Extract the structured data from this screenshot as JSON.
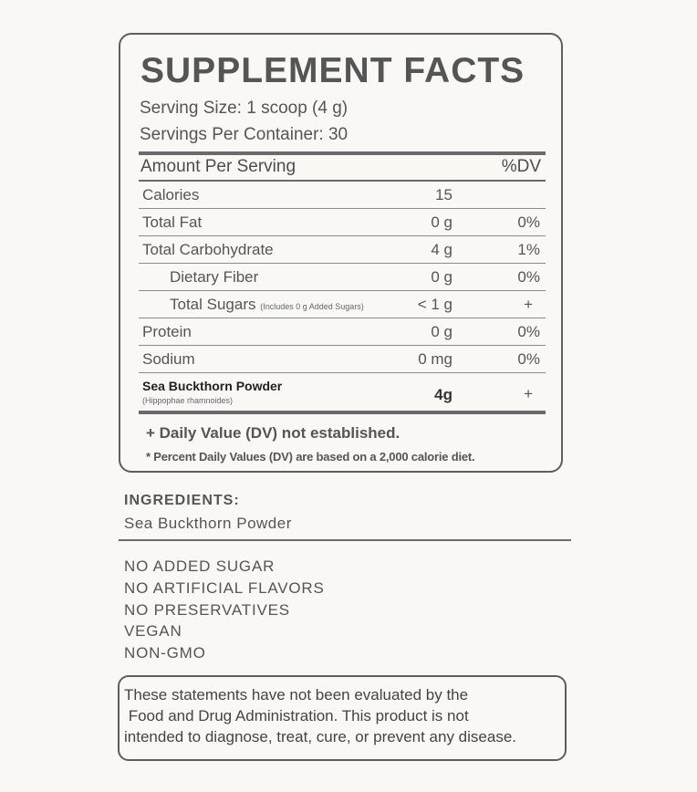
{
  "panel": {
    "title": "SUPPLEMENT FACTS",
    "serving_size": "Serving Size: 1 scoop (4 g)",
    "servings_per_container": "Servings Per Container: 30",
    "header_amount": "Amount Per Serving",
    "header_dv": "%DV",
    "rows": [
      {
        "name": "Calories",
        "amount": "15",
        "dv": ""
      },
      {
        "name": "Total Fat",
        "amount": "0 g",
        "dv": "0%"
      },
      {
        "name": "Total Carbohydrate",
        "amount": "4 g",
        "dv": "1%"
      },
      {
        "name": "Dietary Fiber",
        "amount": "0 g",
        "dv": "0%"
      },
      {
        "name": "Total Sugars",
        "note": "(Includes 0 g Added Sugars)",
        "amount": "< 1 g",
        "dv": "+"
      },
      {
        "name": "Protein",
        "amount": "0 g",
        "dv": "0%"
      },
      {
        "name": "Sodium",
        "amount": "0 mg",
        "dv": "0%"
      }
    ],
    "featured": {
      "name": "Sea Buckthorn Powder",
      "scientific": "(Hippophae rhamnoides)",
      "amount": "4g",
      "dv": "+"
    },
    "footnote_1": "+ Daily Value (DV) not established.",
    "footnote_2": "* Percent Daily Values (DV) are based on a 2,000 calorie diet."
  },
  "ingredients": {
    "heading": "INGREDIENTS:",
    "value": "Sea Buckthorn Powder"
  },
  "claims": [
    "NO ADDED SUGAR",
    "NO ARTIFICIAL FLAVORS",
    "NO PRESERVATIVES",
    "VEGAN",
    "NON-GMO"
  ],
  "disclaimer": {
    "line1": "These statements have not been evaluated by the",
    "line2": " Food and Drug Administration. This product is not",
    "line3": "intended to diagnose, treat, cure, or prevent any disease."
  }
}
